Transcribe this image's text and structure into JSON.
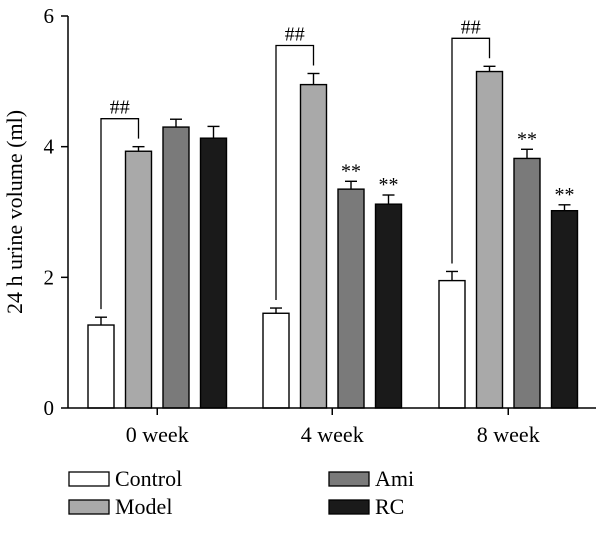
{
  "chart_data": {
    "type": "bar",
    "ylabel": "24 h urine volume (ml)",
    "ylim": [
      0,
      6
    ],
    "yticks": [
      0,
      2,
      4,
      6
    ],
    "categories": [
      "0 week",
      "4 week",
      "8 week"
    ],
    "series": [
      {
        "name": "Control",
        "color": "#ffffff",
        "values": [
          1.27,
          1.45,
          1.95
        ],
        "errors": [
          0.12,
          0.08,
          0.14
        ]
      },
      {
        "name": "Model",
        "color": "#a9a9a9",
        "values": [
          3.93,
          4.95,
          5.15
        ],
        "errors": [
          0.07,
          0.17,
          0.08
        ]
      },
      {
        "name": "Ami",
        "color": "#7a7a7a",
        "values": [
          4.3,
          3.35,
          3.82
        ],
        "errors": [
          0.12,
          0.12,
          0.14
        ]
      },
      {
        "name": "RC",
        "color": "#1a1a1a",
        "values": [
          4.13,
          3.12,
          3.02
        ],
        "errors": [
          0.18,
          0.14,
          0.09
        ]
      }
    ],
    "brackets": [
      {
        "category": 0,
        "from_series": 0,
        "to_series": 1,
        "label": "##"
      },
      {
        "category": 1,
        "from_series": 0,
        "to_series": 1,
        "label": "##"
      },
      {
        "category": 2,
        "from_series": 0,
        "to_series": 1,
        "label": "##"
      }
    ],
    "markers": [
      {
        "category": 1,
        "series": 2,
        "label": "**"
      },
      {
        "category": 1,
        "series": 3,
        "label": "**"
      },
      {
        "category": 2,
        "series": 2,
        "label": "**"
      },
      {
        "category": 2,
        "series": 3,
        "label": "**"
      }
    ],
    "legend": {
      "position": "bottom",
      "items": [
        {
          "label": "Control",
          "color": "#ffffff"
        },
        {
          "label": "Model",
          "color": "#a9a9a9"
        },
        {
          "label": "Ami",
          "color": "#7a7a7a"
        },
        {
          "label": "RC",
          "color": "#1a1a1a"
        }
      ]
    }
  }
}
